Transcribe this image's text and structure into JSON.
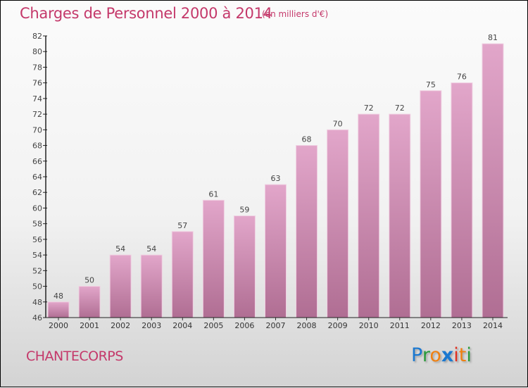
{
  "chart_data": {
    "type": "bar",
    "title": "Charges de Personnel 2000 à 2014",
    "subtitle": "(en milliers d'€)",
    "xlabel": "",
    "ylabel": "",
    "categories": [
      "2000",
      "2001",
      "2002",
      "2003",
      "2004",
      "2005",
      "2006",
      "2007",
      "2008",
      "2009",
      "2010",
      "2011",
      "2012",
      "2013",
      "2014"
    ],
    "values": [
      48,
      50,
      54,
      54,
      57,
      61,
      59,
      63,
      68,
      70,
      72,
      72,
      75,
      76,
      81
    ],
    "ylim": [
      46,
      82
    ],
    "yticks": [
      46,
      48,
      50,
      52,
      54,
      56,
      58,
      60,
      62,
      64,
      66,
      68,
      70,
      72,
      74,
      76,
      78,
      80,
      82
    ],
    "bar_color_top": "#e2a6ca",
    "bar_color_bottom": "#b06e93"
  },
  "place": "CHANTECORPS",
  "logo": {
    "text": "Proxiti",
    "letters": [
      "P",
      "r",
      "o",
      "x",
      "i",
      "t",
      "i"
    ],
    "colors": [
      "#1a78d0",
      "#2a9a3a",
      "#f08010",
      "#1a78d0",
      "#e03020",
      "#f08010",
      "#2a9a3a"
    ]
  }
}
